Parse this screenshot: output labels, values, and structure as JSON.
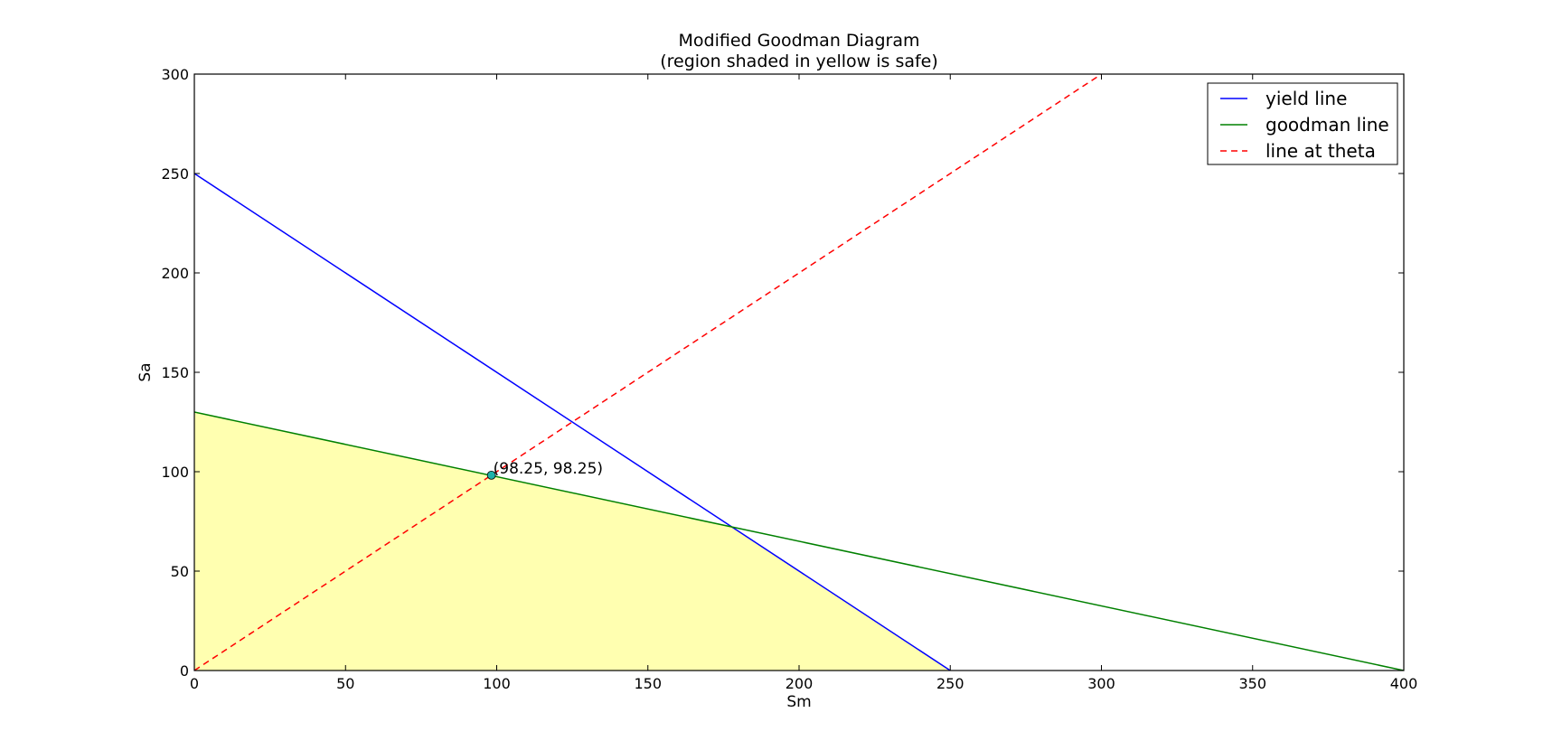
{
  "chart_data": {
    "type": "line",
    "title": "Modified Goodman Diagram",
    "subtitle": "(region shaded in yellow is safe)",
    "xlabel": "Sm",
    "ylabel": "Sa",
    "xlim": [
      0,
      400
    ],
    "ylim": [
      0,
      300
    ],
    "xticks": [
      0,
      50,
      100,
      150,
      200,
      250,
      300,
      350,
      400
    ],
    "yticks": [
      0,
      50,
      100,
      150,
      200,
      250,
      300
    ],
    "grid": false,
    "legend_position": "top-right",
    "series": [
      {
        "name": "yield line",
        "color": "#0000ff",
        "style": "solid",
        "points": [
          [
            0,
            250
          ],
          [
            250,
            0
          ]
        ]
      },
      {
        "name": "goodman line",
        "color": "#008000",
        "style": "solid",
        "points": [
          [
            0,
            130
          ],
          [
            400,
            0
          ]
        ]
      },
      {
        "name": "line at theta",
        "color": "#ff0000",
        "style": "dashed",
        "points": [
          [
            0,
            0
          ],
          [
            300,
            300
          ]
        ]
      }
    ],
    "safe_region": {
      "color": "#ffffb0",
      "points": [
        [
          0,
          0
        ],
        [
          0,
          130
        ],
        [
          98.25,
          98.25
        ],
        [
          177.6,
          72.4
        ],
        [
          250,
          0
        ]
      ]
    },
    "marker": {
      "x": 98.25,
      "y": 98.25,
      "color": "#20b2aa",
      "label": "(98.25, 98.25)"
    }
  }
}
